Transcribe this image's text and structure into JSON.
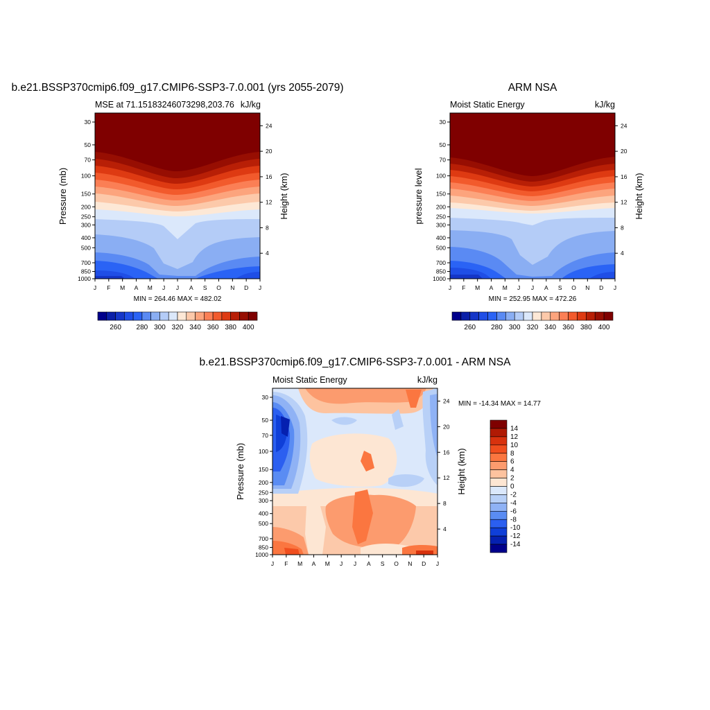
{
  "months": [
    "J",
    "F",
    "M",
    "A",
    "M",
    "J",
    "J",
    "A",
    "S",
    "O",
    "N",
    "D",
    "J"
  ],
  "pressure_ticks": [
    30,
    50,
    70,
    100,
    150,
    200,
    250,
    300,
    400,
    500,
    700,
    850,
    1000
  ],
  "chart_data": [
    {
      "type": "heatmap",
      "title": "b.e21.BSSP370cmip6.f09_g17.CMIP6-SSP3-7.0.001 (yrs 2055-2079)",
      "subtitle_left": "MSE at 71.15183246073298,203.76",
      "subtitle_right": "kJ/kg",
      "ylabel": "Pressure (mb)",
      "ylabel_right": "Height (km)",
      "height_ticks": [
        4,
        8,
        12,
        16,
        20,
        24
      ],
      "stats": "MIN = 264.46 MAX = 482.02",
      "ylim": [
        1000,
        30
      ],
      "scale": "log-pressure",
      "colorbar": {
        "levels": [
          255,
          260,
          265,
          270,
          280,
          290,
          300,
          310,
          320,
          330,
          340,
          350,
          360,
          370,
          380,
          390,
          400
        ],
        "labels": [
          260,
          280,
          300,
          320,
          340,
          360,
          380,
          400
        ],
        "colors": [
          "#00008b",
          "#0a1fa8",
          "#1536c8",
          "#1f4ee6",
          "#2a63f5",
          "#5a8af3",
          "#8aaef3",
          "#b4ccf7",
          "#dbe8fb",
          "#fde8d6",
          "#fcc9aa",
          "#fca47d",
          "#fb7f55",
          "#f25a2c",
          "#de3a12",
          "#b81f06",
          "#970e02",
          "#7f0000"
        ]
      }
    },
    {
      "type": "heatmap",
      "title": "ARM NSA",
      "subtitle_left": "Moist Static Energy",
      "subtitle_right": "kJ/kg",
      "ylabel": "pressure level",
      "ylabel_right": "Height (km)",
      "height_ticks": [
        4,
        8,
        12,
        16,
        20,
        24
      ],
      "stats": "MIN = 252.95 MAX = 472.26",
      "ylim": [
        1000,
        30
      ],
      "scale": "log-pressure",
      "colorbar": {
        "levels": [
          255,
          260,
          265,
          270,
          280,
          290,
          300,
          310,
          320,
          330,
          340,
          350,
          360,
          370,
          380,
          390,
          400
        ],
        "labels": [
          260,
          280,
          300,
          320,
          340,
          360,
          380,
          400
        ],
        "colors": [
          "#00008b",
          "#0a1fa8",
          "#1536c8",
          "#1f4ee6",
          "#2a63f5",
          "#5a8af3",
          "#8aaef3",
          "#b4ccf7",
          "#dbe8fb",
          "#fde8d6",
          "#fcc9aa",
          "#fca47d",
          "#fb7f55",
          "#f25a2c",
          "#de3a12",
          "#b81f06",
          "#970e02",
          "#7f0000"
        ]
      }
    },
    {
      "type": "heatmap",
      "title": "b.e21.BSSP370cmip6.f09_g17.CMIP6-SSP3-7.0.001 - ARM NSA",
      "subtitle_left": "Moist Static Energy",
      "subtitle_right": "kJ/kg",
      "ylabel": "Pressure (mb)",
      "ylabel_right": "Height (km)",
      "height_ticks": [
        4,
        8,
        12,
        16,
        20,
        24
      ],
      "stats": "MIN = -14.34 MAX =  14.77",
      "ylim": [
        1000,
        30
      ],
      "scale": "log-pressure",
      "colorbar": {
        "labels": [
          14,
          12,
          10,
          8,
          6,
          4,
          2,
          0,
          -2,
          -4,
          -6,
          -8,
          -10,
          -12,
          -14
        ],
        "colors": [
          "#7f0000",
          "#b01a04",
          "#d8320e",
          "#f04e1e",
          "#fb7640",
          "#fc9b6e",
          "#fdc39f",
          "#fde6d3",
          "#dbe8fb",
          "#b8d0f7",
          "#8fb2f5",
          "#5a8cf3",
          "#2b5ff0",
          "#0f3fd8",
          "#0520b0",
          "#00008b"
        ]
      }
    }
  ]
}
